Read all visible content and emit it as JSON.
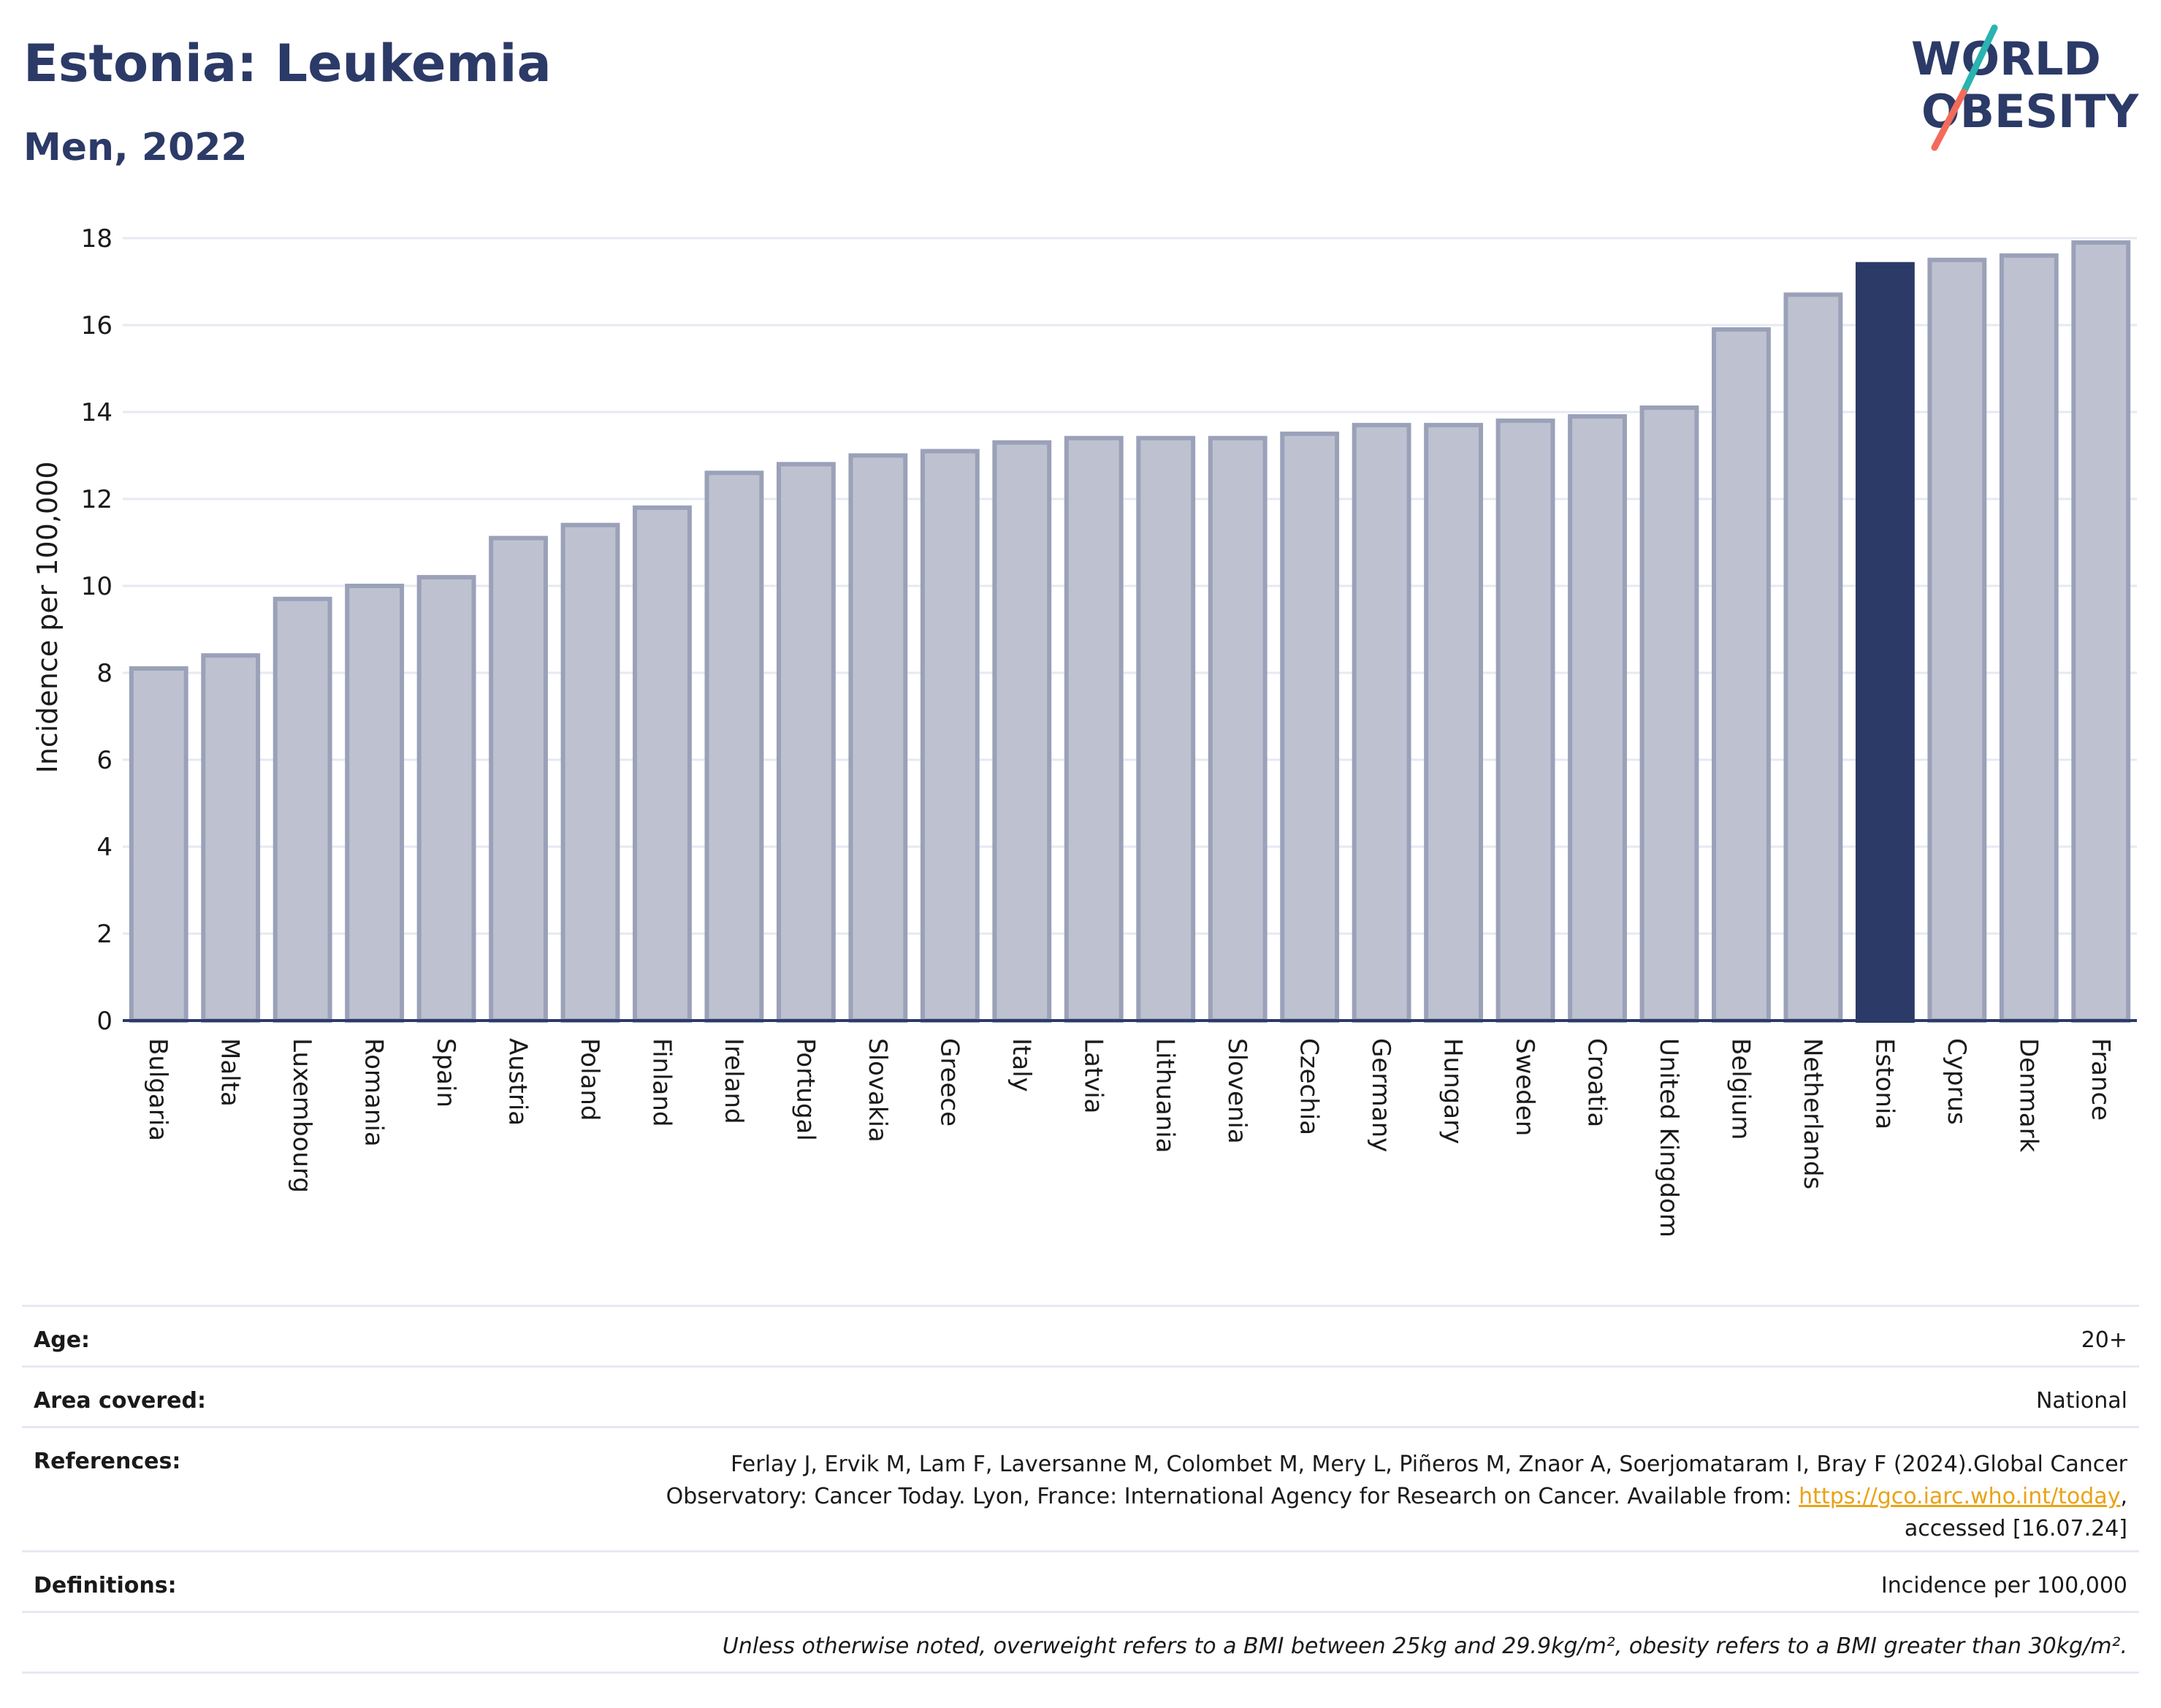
{
  "header": {
    "title": "Estonia: Leukemia",
    "subtitle": "Men, 2022"
  },
  "logo": {
    "line1": "WORLD",
    "line2": "OBESITY",
    "colors": {
      "text": "#2b3a67",
      "slash_teal": "#2ab3b1",
      "slash_coral": "#f26b5b"
    }
  },
  "chart_data": {
    "type": "bar",
    "title": "",
    "xlabel": "",
    "ylabel": "Incidence per 100,000",
    "ylim": [
      0,
      18
    ],
    "yticks": [
      0,
      2,
      4,
      6,
      8,
      10,
      12,
      14,
      16,
      18
    ],
    "grid": true,
    "highlight": "Estonia",
    "colors": {
      "bar": "#bec2d0",
      "bar_border": "#9aa1b8",
      "highlight": "#2b3a67",
      "grid": "#e6e9f2",
      "axis": "#2b3a67"
    },
    "categories": [
      "Bulgaria",
      "Malta",
      "Luxembourg",
      "Romania",
      "Spain",
      "Austria",
      "Poland",
      "Finland",
      "Ireland",
      "Portugal",
      "Slovakia",
      "Greece",
      "Italy",
      "Latvia",
      "Lithuania",
      "Slovenia",
      "Czechia",
      "Germany",
      "Hungary",
      "Sweden",
      "Croatia",
      "United Kingdom",
      "Belgium",
      "Netherlands",
      "Estonia",
      "Cyprus",
      "Denmark",
      "France"
    ],
    "values": [
      8.1,
      8.4,
      9.7,
      10.0,
      10.2,
      11.1,
      11.4,
      11.8,
      12.6,
      12.8,
      13.0,
      13.1,
      13.3,
      13.4,
      13.4,
      13.4,
      13.5,
      13.7,
      13.7,
      13.8,
      13.9,
      14.1,
      15.9,
      16.7,
      17.4,
      17.5,
      17.6,
      17.9
    ]
  },
  "footer": {
    "age_label": "Age:",
    "age_value": "20+",
    "area_label": "Area covered:",
    "area_value": "National",
    "references_label": "References:",
    "references_line1": "Ferlay J, Ervik M, Lam F, Laversanne M, Colombet M, Mery L, Piñeros M, Znaor A, Soerjomataram I, Bray F (2024).Global Cancer",
    "references_line2_prefix": "Observatory: Cancer Today. Lyon, France: International Agency for Research on Cancer. Available from: ",
    "references_link": "https://gco.iarc.who.int/today",
    "references_line2_suffix": ",",
    "references_line3": "accessed [16.07.24]",
    "definitions_label": "Definitions:",
    "definitions_value": "Incidence per 100,000",
    "note": "Unless otherwise noted, overweight refers to a BMI between 25kg and 29.9kg/m², obesity refers to a BMI greater than 30kg/m²."
  }
}
